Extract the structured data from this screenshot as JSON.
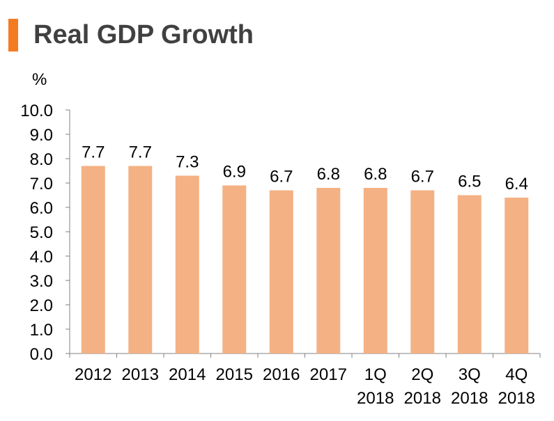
{
  "title": "Real GDP Growth",
  "colors": {
    "accent": "#F47B20",
    "bar": "#F4B183",
    "axis": "#808080",
    "title": "#404040"
  },
  "chart_data": {
    "type": "bar",
    "title": "Real GDP Growth",
    "ylabel": "%",
    "xlabel": "",
    "ylim": [
      0,
      10
    ],
    "ytick_step": 1,
    "ytick_labels": [
      "0.0",
      "1.0",
      "2.0",
      "3.0",
      "4.0",
      "5.0",
      "6.0",
      "7.0",
      "8.0",
      "9.0",
      "10.0"
    ],
    "categories": [
      [
        "2012"
      ],
      [
        "2013"
      ],
      [
        "2014"
      ],
      [
        "2015"
      ],
      [
        "2016"
      ],
      [
        "2017"
      ],
      [
        "1Q",
        "2018"
      ],
      [
        "2Q",
        "2018"
      ],
      [
        "3Q",
        "2018"
      ],
      [
        "4Q",
        "2018"
      ]
    ],
    "values": [
      7.7,
      7.7,
      7.3,
      6.9,
      6.7,
      6.8,
      6.8,
      6.7,
      6.5,
      6.4
    ],
    "value_labels": [
      "7.7",
      "7.7",
      "7.3",
      "6.9",
      "6.7",
      "6.8",
      "6.8",
      "6.7",
      "6.5",
      "6.4"
    ],
    "grid": false,
    "legend": "none"
  }
}
